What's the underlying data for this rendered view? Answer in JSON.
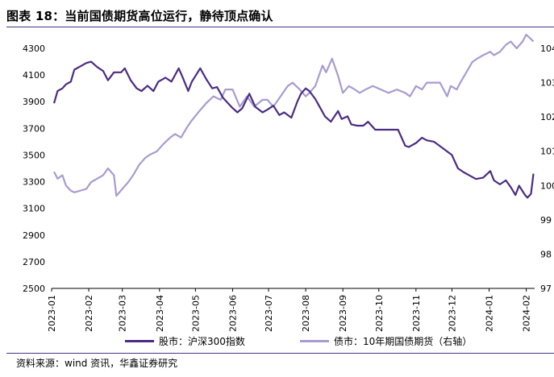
{
  "header": {
    "title": "图表 18：当前国债期货高位运行，静待顶点确认"
  },
  "footer": {
    "source": "资料来源：wind 资讯，华鑫证券研究"
  },
  "legend": {
    "stock_label": "股市：沪深300指数",
    "bond_label": "债市：10年期国债期货（右轴）"
  },
  "colors": {
    "stock": "#4a2c82",
    "bond": "#a89bd0",
    "rule": "#4a3282"
  },
  "chart_data": {
    "type": "line",
    "x_tick_labels": [
      "2023-01",
      "2023-02",
      "2023-03",
      "2023-04",
      "2023-05",
      "2023-06",
      "2023-07",
      "2023-08",
      "2023-09",
      "2023-10",
      "2023-11",
      "2023-12",
      "2024-01",
      "2024-02"
    ],
    "y_left": {
      "ticks": [
        2500,
        2700,
        2900,
        3100,
        3300,
        3500,
        3700,
        3900,
        4100,
        4300
      ],
      "ylim": [
        2500,
        4300
      ]
    },
    "y_right": {
      "ticks": [
        "97",
        "98",
        "99",
        "100",
        "101",
        "102",
        "103",
        "104"
      ],
      "ylim": [
        97,
        104
      ]
    },
    "grid": false,
    "series": [
      {
        "name": "股市：沪深300指数",
        "axis": "left",
        "points": [
          [
            "2023-01-03",
            3888
          ],
          [
            "2023-01-06",
            3980
          ],
          [
            "2023-01-10",
            4000
          ],
          [
            "2023-01-13",
            4030
          ],
          [
            "2023-01-17",
            4050
          ],
          [
            "2023-01-20",
            4140
          ],
          [
            "2023-01-30",
            4190
          ],
          [
            "2023-02-03",
            4200
          ],
          [
            "2023-02-08",
            4160
          ],
          [
            "2023-02-13",
            4130
          ],
          [
            "2023-02-17",
            4060
          ],
          [
            "2023-02-22",
            4120
          ],
          [
            "2023-02-28",
            4120
          ],
          [
            "2023-03-03",
            4150
          ],
          [
            "2023-03-08",
            4060
          ],
          [
            "2023-03-13",
            4000
          ],
          [
            "2023-03-17",
            3980
          ],
          [
            "2023-03-22",
            4020
          ],
          [
            "2023-03-27",
            3980
          ],
          [
            "2023-03-31",
            4050
          ],
          [
            "2023-04-06",
            4080
          ],
          [
            "2023-04-11",
            4050
          ],
          [
            "2023-04-17",
            4150
          ],
          [
            "2023-04-20",
            4090
          ],
          [
            "2023-04-25",
            3980
          ],
          [
            "2023-04-28",
            4050
          ],
          [
            "2023-05-05",
            4150
          ],
          [
            "2023-05-10",
            4070
          ],
          [
            "2023-05-15",
            4000
          ],
          [
            "2023-05-19",
            4010
          ],
          [
            "2023-05-24",
            3930
          ],
          [
            "2023-05-31",
            3860
          ],
          [
            "2023-06-05",
            3820
          ],
          [
            "2023-06-09",
            3850
          ],
          [
            "2023-06-15",
            3960
          ],
          [
            "2023-06-20",
            3860
          ],
          [
            "2023-06-26",
            3820
          ],
          [
            "2023-06-30",
            3840
          ],
          [
            "2023-07-05",
            3870
          ],
          [
            "2023-07-10",
            3800
          ],
          [
            "2023-07-14",
            3820
          ],
          [
            "2023-07-20",
            3780
          ],
          [
            "2023-07-25",
            3900
          ],
          [
            "2023-07-28",
            3960
          ],
          [
            "2023-08-01",
            4000
          ],
          [
            "2023-08-04",
            3980
          ],
          [
            "2023-08-09",
            3920
          ],
          [
            "2023-08-14",
            3840
          ],
          [
            "2023-08-17",
            3790
          ],
          [
            "2023-08-22",
            3750
          ],
          [
            "2023-08-28",
            3830
          ],
          [
            "2023-08-31",
            3770
          ],
          [
            "2023-09-05",
            3790
          ],
          [
            "2023-09-08",
            3730
          ],
          [
            "2023-09-13",
            3720
          ],
          [
            "2023-09-18",
            3720
          ],
          [
            "2023-09-22",
            3750
          ],
          [
            "2023-09-28",
            3690
          ],
          [
            "2023-10-11",
            3690
          ],
          [
            "2023-10-17",
            3690
          ],
          [
            "2023-10-23",
            3570
          ],
          [
            "2023-10-26",
            3560
          ],
          [
            "2023-11-01",
            3590
          ],
          [
            "2023-11-06",
            3630
          ],
          [
            "2023-11-10",
            3610
          ],
          [
            "2023-11-16",
            3600
          ],
          [
            "2023-11-22",
            3560
          ],
          [
            "2023-11-28",
            3520
          ],
          [
            "2023-12-01",
            3500
          ],
          [
            "2023-12-06",
            3400
          ],
          [
            "2023-12-11",
            3370
          ],
          [
            "2023-12-15",
            3350
          ],
          [
            "2023-12-21",
            3320
          ],
          [
            "2023-12-27",
            3330
          ],
          [
            "2024-01-02",
            3380
          ],
          [
            "2024-01-05",
            3310
          ],
          [
            "2024-01-10",
            3280
          ],
          [
            "2024-01-15",
            3310
          ],
          [
            "2024-01-19",
            3260
          ],
          [
            "2024-01-23",
            3200
          ],
          [
            "2024-01-26",
            3270
          ],
          [
            "2024-01-31",
            3200
          ],
          [
            "2024-02-02",
            3180
          ],
          [
            "2024-02-05",
            3210
          ],
          [
            "2024-02-07",
            3360
          ]
        ]
      },
      {
        "name": "债市：10年期国债期货（右轴）",
        "axis": "right",
        "points": [
          [
            "2023-01-03",
            100.4
          ],
          [
            "2023-01-06",
            100.2
          ],
          [
            "2023-01-10",
            100.3
          ],
          [
            "2023-01-13",
            100.0
          ],
          [
            "2023-01-17",
            99.85
          ],
          [
            "2023-01-20",
            99.8
          ],
          [
            "2023-01-30",
            99.9
          ],
          [
            "2023-02-03",
            100.1
          ],
          [
            "2023-02-08",
            100.2
          ],
          [
            "2023-02-13",
            100.3
          ],
          [
            "2023-02-17",
            100.5
          ],
          [
            "2023-02-22",
            100.3
          ],
          [
            "2023-02-24",
            99.7
          ],
          [
            "2023-03-01",
            99.9
          ],
          [
            "2023-03-06",
            100.1
          ],
          [
            "2023-03-10",
            100.3
          ],
          [
            "2023-03-15",
            100.6
          ],
          [
            "2023-03-20",
            100.8
          ],
          [
            "2023-03-24",
            100.9
          ],
          [
            "2023-03-30",
            101.0
          ],
          [
            "2023-04-04",
            101.2
          ],
          [
            "2023-04-10",
            101.4
          ],
          [
            "2023-04-14",
            101.5
          ],
          [
            "2023-04-19",
            101.4
          ],
          [
            "2023-04-24",
            101.7
          ],
          [
            "2023-04-28",
            101.9
          ],
          [
            "2023-05-05",
            102.2
          ],
          [
            "2023-05-10",
            102.4
          ],
          [
            "2023-05-16",
            102.6
          ],
          [
            "2023-05-22",
            102.5
          ],
          [
            "2023-05-26",
            102.8
          ],
          [
            "2023-06-01",
            102.8
          ],
          [
            "2023-06-07",
            102.3
          ],
          [
            "2023-06-13",
            102.6
          ],
          [
            "2023-06-19",
            102.3
          ],
          [
            "2023-06-26",
            102.5
          ],
          [
            "2023-06-30",
            102.5
          ],
          [
            "2023-07-05",
            102.3
          ],
          [
            "2023-07-11",
            102.6
          ],
          [
            "2023-07-17",
            102.9
          ],
          [
            "2023-07-21",
            103.0
          ],
          [
            "2023-07-27",
            102.8
          ],
          [
            "2023-08-01",
            102.6
          ],
          [
            "2023-08-04",
            102.7
          ],
          [
            "2023-08-09",
            102.9
          ],
          [
            "2023-08-15",
            103.5
          ],
          [
            "2023-08-18",
            103.3
          ],
          [
            "2023-08-23",
            103.7
          ],
          [
            "2023-08-28",
            103.2
          ],
          [
            "2023-09-01",
            102.7
          ],
          [
            "2023-09-06",
            102.9
          ],
          [
            "2023-09-11",
            102.8
          ],
          [
            "2023-09-15",
            102.7
          ],
          [
            "2023-09-20",
            102.8
          ],
          [
            "2023-09-26",
            102.9
          ],
          [
            "2023-10-09",
            102.7
          ],
          [
            "2023-10-16",
            102.8
          ],
          [
            "2023-10-23",
            102.7
          ],
          [
            "2023-10-27",
            102.6
          ],
          [
            "2023-11-01",
            102.9
          ],
          [
            "2023-11-06",
            102.8
          ],
          [
            "2023-11-10",
            103.0
          ],
          [
            "2023-11-16",
            103.0
          ],
          [
            "2023-11-21",
            103.0
          ],
          [
            "2023-11-27",
            102.6
          ],
          [
            "2023-11-30",
            102.9
          ],
          [
            "2023-12-05",
            102.8
          ],
          [
            "2023-12-08",
            103.0
          ],
          [
            "2023-12-13",
            103.3
          ],
          [
            "2023-12-18",
            103.6
          ],
          [
            "2023-12-22",
            103.7
          ],
          [
            "2023-12-27",
            103.8
          ],
          [
            "2024-01-02",
            103.9
          ],
          [
            "2024-01-05",
            103.8
          ],
          [
            "2024-01-10",
            103.9
          ],
          [
            "2024-01-15",
            104.1
          ],
          [
            "2024-01-19",
            104.2
          ],
          [
            "2024-01-24",
            104.0
          ],
          [
            "2024-01-29",
            104.2
          ],
          [
            "2024-02-01",
            104.4
          ],
          [
            "2024-02-04",
            104.3
          ],
          [
            "2024-02-07",
            104.2
          ]
        ]
      }
    ]
  }
}
